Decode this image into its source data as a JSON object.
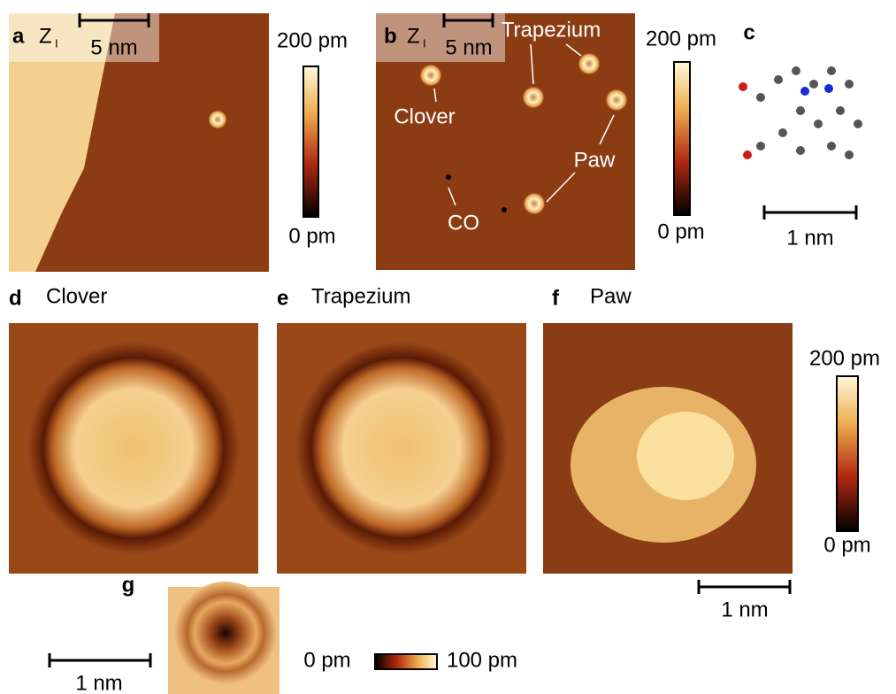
{
  "panel_a": {
    "label": "a",
    "channel": "Z",
    "channel_sub": "I",
    "scale": "5 nm",
    "cbar_max": "200 pm",
    "cbar_min": "0 pm"
  },
  "panel_b": {
    "label": "b",
    "channel": "Z",
    "channel_sub": "I",
    "scale": "5 nm",
    "annotations": [
      "Trapezium",
      "Clover",
      "Paw",
      "CO"
    ],
    "cbar_max": "200 pm",
    "cbar_min": "0 pm"
  },
  "panel_c": {
    "label": "c",
    "scale": "1 nm"
  },
  "panel_d": {
    "label": "d",
    "title": "Clover"
  },
  "panel_e": {
    "label": "e",
    "title": "Trapezium"
  },
  "panel_f": {
    "label": "f",
    "title": "Paw",
    "cbar_max": "200 pm",
    "cbar_min": "0 pm",
    "scale": "1 nm"
  },
  "panel_g": {
    "label": "g",
    "scale": "1 nm",
    "cbar_min": "0 pm",
    "cbar_max": "100 pm"
  }
}
